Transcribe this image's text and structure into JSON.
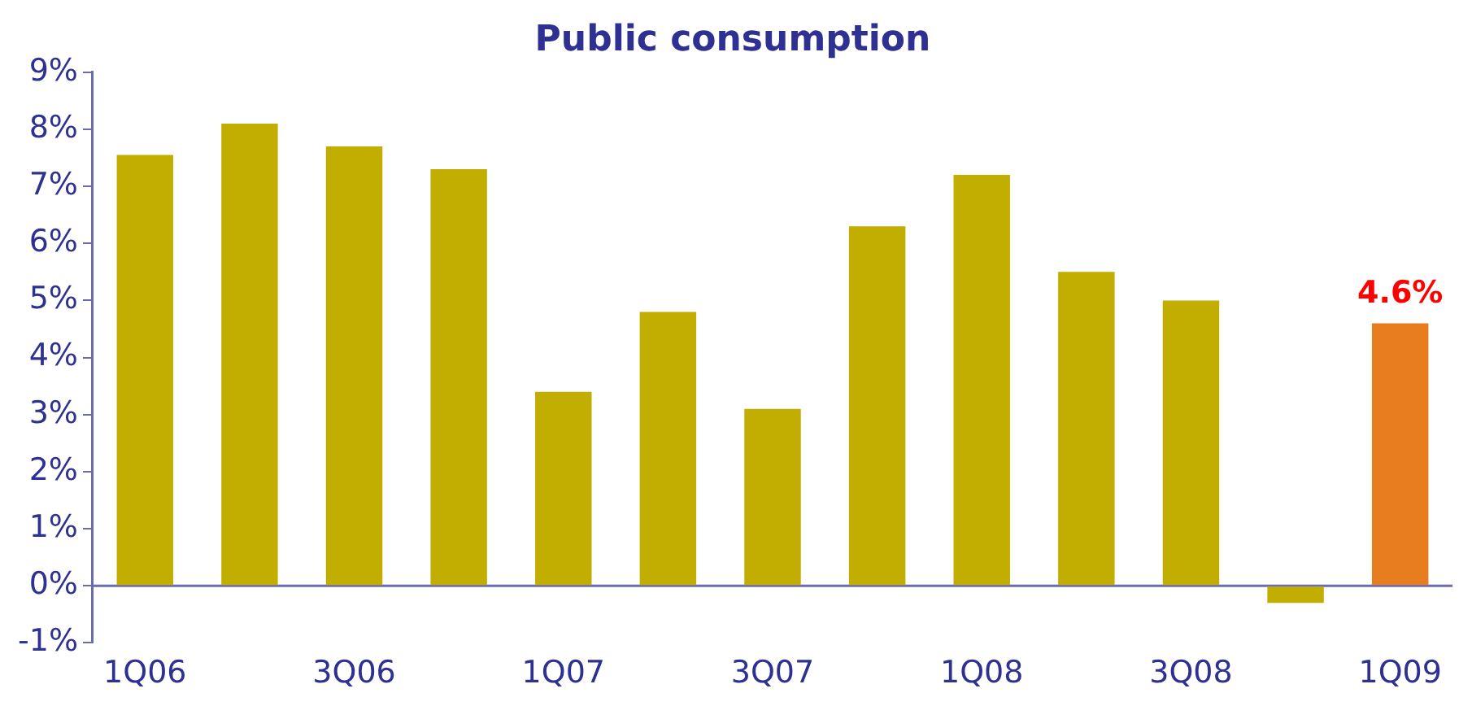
{
  "chart_data": {
    "type": "bar",
    "title": "Public consumption",
    "categories": [
      "1Q06",
      null,
      "3Q06",
      null,
      "1Q07",
      null,
      "3Q07",
      null,
      "1Q08",
      null,
      "3Q08",
      null,
      "1Q09"
    ],
    "values": [
      7.55,
      8.1,
      7.7,
      7.3,
      3.4,
      4.8,
      3.1,
      6.3,
      7.2,
      5.5,
      5.0,
      -0.3,
      4.6
    ],
    "colors": [
      "#c2ae00",
      "#c2ae00",
      "#c2ae00",
      "#c2ae00",
      "#c2ae00",
      "#c2ae00",
      "#c2ae00",
      "#c2ae00",
      "#c2ae00",
      "#c2ae00",
      "#c2ae00",
      "#c2ae00",
      "#e87d20"
    ],
    "value_labels": [
      null,
      null,
      null,
      null,
      null,
      null,
      null,
      null,
      null,
      null,
      null,
      null,
      "4.6%"
    ],
    "ylim": [
      -1,
      9
    ],
    "yticks": [
      {
        "value": -1,
        "label": "-1%"
      },
      {
        "value": 0,
        "label": "0%"
      },
      {
        "value": 1,
        "label": "1%"
      },
      {
        "value": 2,
        "label": "2%"
      },
      {
        "value": 3,
        "label": "3%"
      },
      {
        "value": 4,
        "label": "4%"
      },
      {
        "value": 5,
        "label": "5%"
      },
      {
        "value": 6,
        "label": "6%"
      },
      {
        "value": 7,
        "label": "7%"
      },
      {
        "value": 8,
        "label": "8%"
      },
      {
        "value": 9,
        "label": "9%"
      }
    ],
    "grid": false,
    "legend": false
  }
}
